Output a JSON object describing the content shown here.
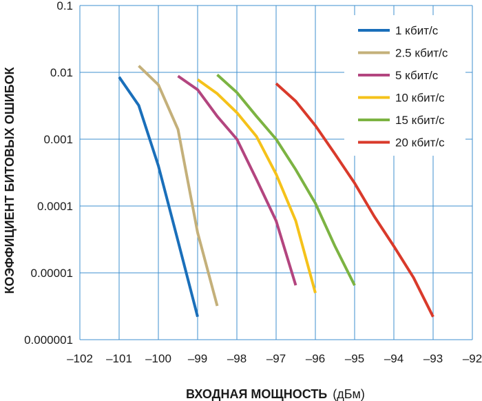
{
  "chart_data": {
    "type": "line",
    "title": "",
    "xlabel": "ВХОДНАЯ МОЩНОСТЬ",
    "xlabel_unit": "(дБм)",
    "ylabel": "КОЭФФИЦИЕНТ БИТОВЫХ ОШИБОК",
    "y_scale": "log",
    "xlim": [
      -102,
      -92
    ],
    "ylim": [
      1e-06,
      0.1
    ],
    "grid": true,
    "legend_position": "top-right",
    "x_ticks": [
      {
        "value": -102,
        "label": "–102"
      },
      {
        "value": -101,
        "label": "–101"
      },
      {
        "value": -100,
        "label": "–100"
      },
      {
        "value": -99,
        "label": "–99"
      },
      {
        "value": -98,
        "label": "–98"
      },
      {
        "value": -97,
        "label": "–97"
      },
      {
        "value": -96,
        "label": "–96"
      },
      {
        "value": -95,
        "label": "–95"
      },
      {
        "value": -94,
        "label": "–94"
      },
      {
        "value": -93,
        "label": "–93"
      },
      {
        "value": -92,
        "label": "–92"
      }
    ],
    "y_ticks": [
      {
        "value": 0.1,
        "label": "0.1"
      },
      {
        "value": 0.01,
        "label": "0.01"
      },
      {
        "value": 0.001,
        "label": "0.001"
      },
      {
        "value": 0.0001,
        "label": "0.0001"
      },
      {
        "value": 1e-05,
        "label": "0.00001"
      },
      {
        "value": 1e-06,
        "label": "0.000001"
      }
    ],
    "series": [
      {
        "name": "1 кбит/с",
        "color": "#1a6fba",
        "points": [
          [
            -101.0,
            0.0085
          ],
          [
            -100.5,
            0.0032
          ],
          [
            -100.0,
            0.0004
          ],
          [
            -99.5,
            3e-05
          ],
          [
            -99.0,
            2.2e-06
          ]
        ]
      },
      {
        "name": "2.5 кбит/с",
        "color": "#c4b07a",
        "points": [
          [
            -100.5,
            0.0125
          ],
          [
            -100.0,
            0.0065
          ],
          [
            -99.5,
            0.0014
          ],
          [
            -99.0,
            4e-05
          ],
          [
            -98.5,
            3.2e-06
          ]
        ]
      },
      {
        "name": "5 кбит/с",
        "color": "#b3457f",
        "points": [
          [
            -99.5,
            0.0088
          ],
          [
            -99.0,
            0.0055
          ],
          [
            -98.5,
            0.0022
          ],
          [
            -98.0,
            0.001
          ],
          [
            -97.5,
            0.00025
          ],
          [
            -97.0,
            6e-05
          ],
          [
            -96.5,
            6.5e-06
          ]
        ]
      },
      {
        "name": "10 кбит/с",
        "color": "#f5c21a",
        "points": [
          [
            -99.0,
            0.0078
          ],
          [
            -98.5,
            0.0048
          ],
          [
            -98.0,
            0.0025
          ],
          [
            -97.5,
            0.0011
          ],
          [
            -97.0,
            0.0003
          ],
          [
            -96.5,
            6e-05
          ],
          [
            -96.0,
            5e-06
          ]
        ]
      },
      {
        "name": "15 кбит/с",
        "color": "#7cb342",
        "points": [
          [
            -98.5,
            0.0092
          ],
          [
            -98.0,
            0.005
          ],
          [
            -97.5,
            0.0022
          ],
          [
            -97.0,
            0.001
          ],
          [
            -96.5,
            0.00035
          ],
          [
            -96.0,
            0.00011
          ],
          [
            -95.5,
            2.5e-05
          ],
          [
            -95.0,
            6.5e-06
          ]
        ]
      },
      {
        "name": "20 кбит/с",
        "color": "#d93a2b",
        "points": [
          [
            -97.0,
            0.0068
          ],
          [
            -96.5,
            0.0037
          ],
          [
            -96.0,
            0.0016
          ],
          [
            -95.5,
            0.0006
          ],
          [
            -95.0,
            0.00022
          ],
          [
            -94.5,
            7e-05
          ],
          [
            -94.0,
            2.5e-05
          ],
          [
            -93.5,
            8.5e-06
          ],
          [
            -93.0,
            2.2e-06
          ]
        ]
      }
    ]
  }
}
